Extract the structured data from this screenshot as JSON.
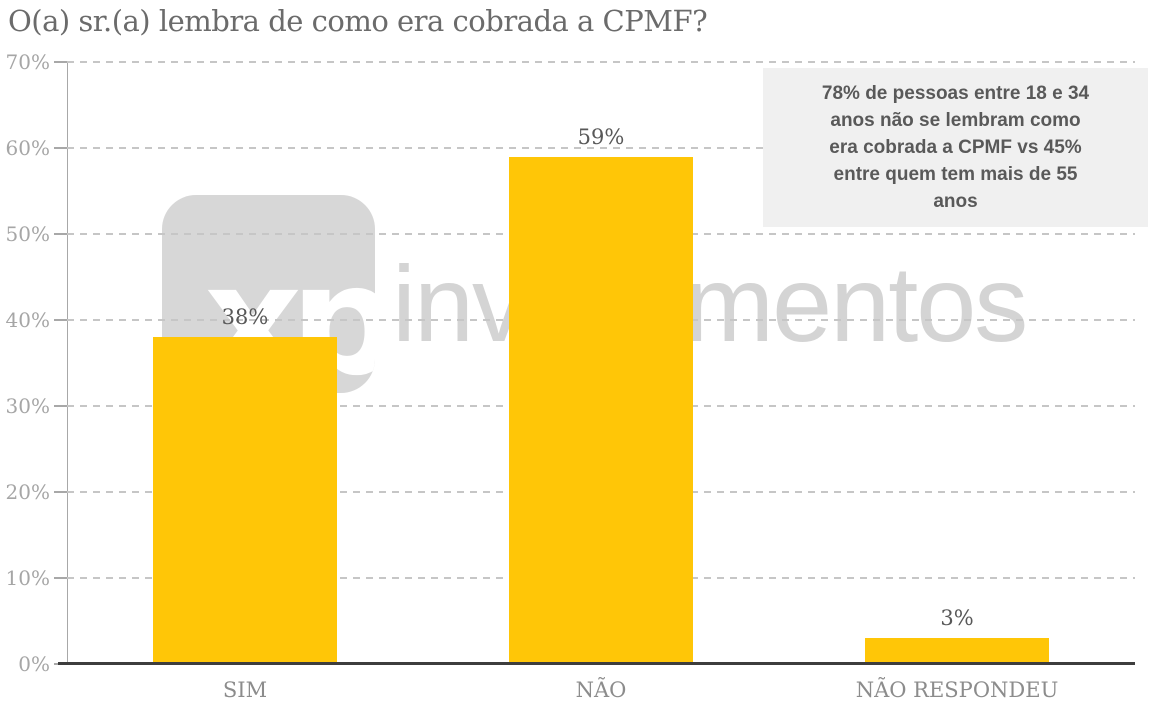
{
  "title": "O(a) sr.(a) lembra de como era cobrada a CPMF?",
  "chart_data": {
    "type": "bar",
    "title": "O(a) sr.(a) lembra de como era cobrada a CPMF?",
    "categories": [
      "SIM",
      "NÃO",
      "NÃO RESPONDEU"
    ],
    "values": [
      38,
      59,
      3
    ],
    "data_labels": [
      "38%",
      "59%",
      "3%"
    ],
    "ylim": [
      0,
      70
    ],
    "y_ticks": [
      "70%",
      "60%",
      "50%",
      "40%",
      "30%",
      "20%",
      "10%",
      "0%"
    ],
    "grid": "horizontal-dashed",
    "legend": "none",
    "bar_color": "#FFC607",
    "annotation": "78% de pessoas entre 18 e 34\nanos não se lembram como\nera cobrada a CPMF vs 45%\nentre quem tem mais de 55\nanos"
  },
  "annotation": {
    "text": "78% de pessoas entre 18 e 34\nanos não se lembram como\nera cobrada a CPMF vs 45%\nentre quem tem mais de 55\nanos",
    "background": "#F0F0F0",
    "text_color": "#595959"
  },
  "watermark": {
    "logo_text": "xp",
    "brand_text": "investimentos"
  },
  "colors": {
    "bar": "#FFC607",
    "title_text": "#6B6B6B",
    "axis_label": "#A6A6A6",
    "category_label": "#8C8C8C",
    "value_label": "#585858",
    "gridline": "#C6C6C6",
    "axis_line": "#3D3D3D",
    "watermark": "#D7D7D7"
  }
}
